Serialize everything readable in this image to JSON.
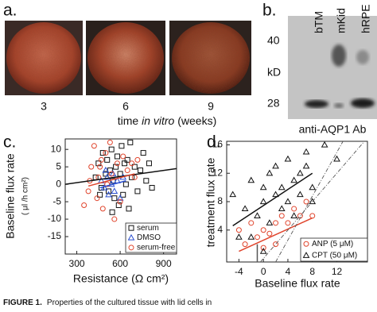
{
  "panels": {
    "a": {
      "label": "a.",
      "weeks": [
        "3",
        "6",
        "9"
      ],
      "axis_title": [
        "time ",
        "in vitro",
        " (weeks)"
      ]
    },
    "b": {
      "label": "b.",
      "lanes": [
        "bTM",
        "mKid",
        "hRPE"
      ],
      "markers": [
        "40",
        "kD",
        "28"
      ],
      "antibody": "anti-AQP1 Ab"
    }
  },
  "chart_data": [
    {
      "type": "scatter",
      "panel_label": "c.",
      "ylabel": "Baseline flux rate",
      "yunit": "( μl /h cm²)",
      "xlabel": "Resistance (Ω cm²)",
      "xlim": [
        220,
        990
      ],
      "xticks": [
        300,
        600,
        900
      ],
      "ylim": [
        -20,
        13
      ],
      "yticks": [
        -15,
        -10,
        -5,
        0,
        5,
        10
      ],
      "series": [
        {
          "name": "serum",
          "color": "#111111",
          "marker": "square",
          "x": [
            430,
            450,
            470,
            480,
            500,
            510,
            520,
            530,
            540,
            550,
            560,
            570,
            580,
            590,
            600,
            610,
            620,
            630,
            640,
            650,
            660,
            670,
            680,
            700,
            720,
            740,
            760,
            780,
            800,
            820,
            460,
            545
          ],
          "values": [
            2,
            6,
            -1,
            9,
            3,
            7,
            -2,
            4,
            10,
            1,
            -4,
            5,
            8,
            -6,
            3,
            11,
            -3,
            6,
            0,
            7,
            -7,
            12,
            2,
            5,
            -2,
            4,
            9,
            1,
            6,
            -1,
            -3,
            -8
          ]
        },
        {
          "name": "DMSO",
          "color": "#2a4fd0",
          "marker": "triangle",
          "x": [
            470,
            490,
            510,
            520,
            540,
            550,
            560,
            580,
            600,
            620,
            500
          ],
          "values": [
            1,
            -1,
            2,
            -3,
            0,
            3,
            -2,
            1,
            -4,
            2,
            4
          ]
        },
        {
          "name": "serum-free",
          "color": "#e0442c",
          "marker": "circle",
          "x": [
            350,
            380,
            400,
            420,
            440,
            450,
            470,
            480,
            500,
            510,
            530,
            540,
            560,
            580,
            600,
            620,
            650,
            680,
            700,
            720,
            390,
            460
          ],
          "values": [
            -6,
            -2,
            5,
            11,
            -4,
            2,
            7,
            -7,
            9,
            0,
            12,
            3,
            -10,
            6,
            -5,
            8,
            4,
            6,
            2,
            7,
            1,
            5
          ]
        }
      ],
      "lines": [
        {
          "color": "#111111",
          "dash": "none",
          "x": [
            220,
            990
          ],
          "y": [
            0,
            4.5
          ]
        },
        {
          "color": "#e0442c",
          "dash": "none",
          "x": [
            380,
            700
          ],
          "y": [
            -0.5,
            3
          ]
        },
        {
          "color": "#2a4fd0",
          "dash": "none",
          "x": [
            460,
            640
          ],
          "y": [
            -1,
            1
          ]
        }
      ],
      "legend": "lower right"
    },
    {
      "type": "scatter",
      "panel_label": "d.",
      "ylabel": "treatment flux rate",
      "xlabel": "Baseline flux rate",
      "xlim": [
        -6,
        17
      ],
      "xticks": [
        -4,
        0,
        4,
        8,
        12
      ],
      "ylim": [
        -0.5,
        16.5
      ],
      "yticks": [
        4,
        8,
        12,
        16
      ],
      "series": [
        {
          "name": "ANP (5 μM)",
          "color": "#e0442c",
          "marker": "circle",
          "x": [
            -4,
            -3,
            -2,
            -1,
            0,
            1,
            2,
            3,
            4,
            5,
            6,
            7,
            8,
            2,
            0
          ],
          "values": [
            4,
            2,
            5,
            3,
            4,
            3.5,
            5,
            6,
            5,
            7,
            6,
            8,
            6,
            2,
            1.5
          ]
        },
        {
          "name": "CPT (50 μM)",
          "color": "#111111",
          "marker": "triangle",
          "x": [
            -5,
            -4,
            -3,
            -2,
            -1,
            0,
            0,
            1,
            1,
            2,
            2,
            3,
            3,
            4,
            4,
            5,
            5,
            6,
            6,
            7,
            7,
            8,
            8,
            10,
            12,
            -2,
            0
          ],
          "values": [
            9,
            3,
            7,
            11,
            6,
            8,
            10,
            5,
            12,
            9,
            13,
            7,
            10,
            14,
            8,
            11,
            6,
            12,
            9,
            13,
            15,
            10,
            8,
            16,
            14,
            3,
            1
          ]
        }
      ],
      "lines": [
        {
          "color": "#111111",
          "dash": "none",
          "x": [
            -5,
            8
          ],
          "y": [
            4.6,
            12
          ]
        },
        {
          "color": "#e0442c",
          "dash": "none",
          "x": [
            -4,
            8
          ],
          "y": [
            1,
            5.7
          ]
        },
        {
          "color": "#555555",
          "dash": "5 2 1 2",
          "x": [
            -0.5,
            16.5
          ],
          "y": [
            -0.5,
            16.5
          ]
        },
        {
          "color": "#555555",
          "dash": "5 2 1 2",
          "x": [
            2,
            13
          ],
          "y": [
            -0.5,
            16.5
          ]
        },
        {
          "color": "#555555",
          "dash": "none",
          "x": [
            -1,
            -1
          ],
          "y": [
            -0.5,
            2
          ]
        }
      ],
      "legend": "lower right"
    }
  ],
  "caption": {
    "label": "FIGURE 1.",
    "text": "Properties of the cultured tissue with lid cells in"
  }
}
